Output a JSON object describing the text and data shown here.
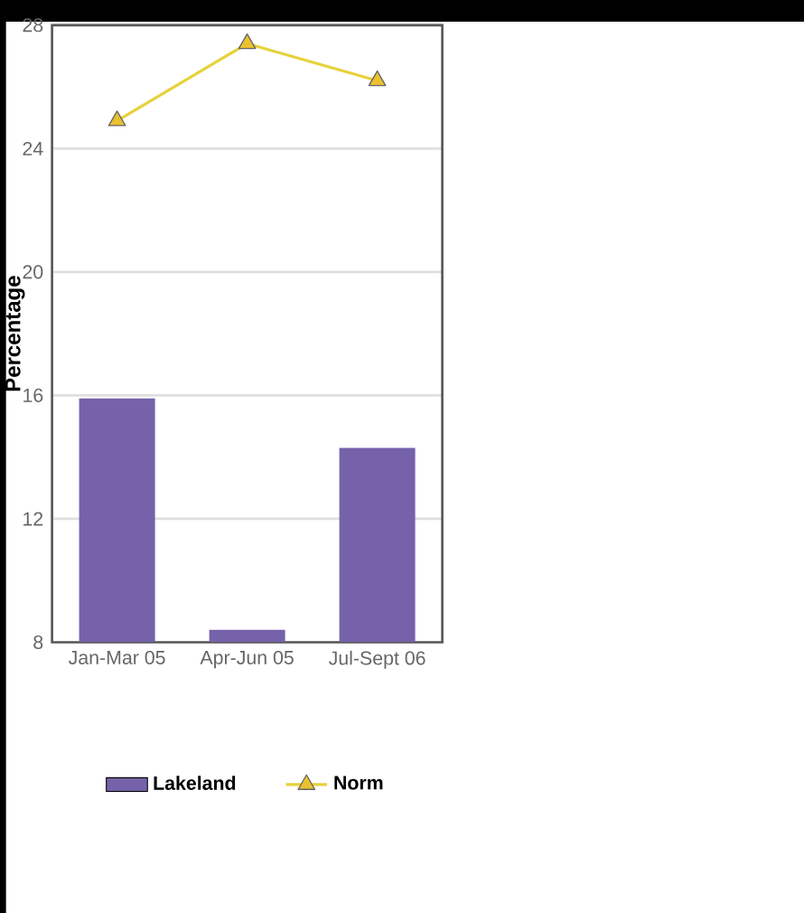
{
  "chart_data": {
    "type": "bar",
    "ylabel": "Percentage",
    "categories": [
      "Jan-Mar 05",
      "Apr-Jun 05",
      "Jul-Sept 06"
    ],
    "series": [
      {
        "name": "Lakeland",
        "color": "#7562aa",
        "values": [
          15.9,
          8.4,
          14.3
        ]
      },
      {
        "name": "Norm",
        "type": "line",
        "color": "#e6d23c",
        "marker": "triangle",
        "values": [
          24.9,
          27.4,
          26.2
        ]
      }
    ],
    "ylim": [
      8,
      28
    ],
    "yticks": [
      8,
      12,
      16,
      20,
      24,
      28
    ],
    "grid": "y",
    "legend": "bottom"
  }
}
